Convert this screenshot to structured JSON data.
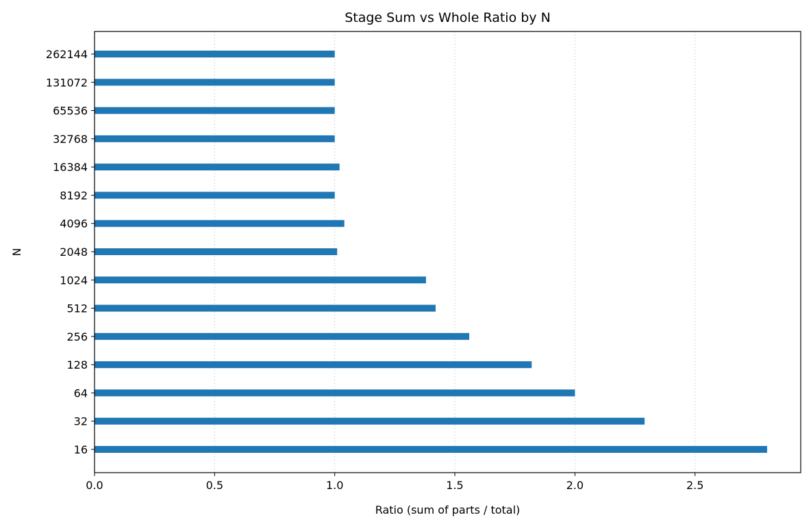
{
  "chart_data": {
    "type": "bar",
    "orientation": "horizontal",
    "title": "Stage Sum vs Whole Ratio by N",
    "xlabel": "Ratio (sum of parts / total)",
    "ylabel": "N",
    "categories": [
      "16",
      "32",
      "64",
      "128",
      "256",
      "512",
      "1024",
      "2048",
      "4096",
      "8192",
      "16384",
      "32768",
      "65536",
      "131072",
      "262144"
    ],
    "values": [
      2.8,
      2.29,
      2.0,
      1.82,
      1.56,
      1.42,
      1.38,
      1.01,
      1.04,
      1.0,
      1.02,
      1.0,
      1.0,
      1.0,
      1.0
    ],
    "xlim": [
      0,
      2.94
    ],
    "xticks": [
      0.0,
      0.5,
      1.0,
      1.5,
      2.0,
      2.5
    ],
    "xtick_labels": [
      "0.0",
      "0.5",
      "1.0",
      "1.5",
      "2.0",
      "2.5"
    ],
    "grid": {
      "x": true,
      "y": false,
      "style": "dotted"
    },
    "legend": "none",
    "bar_color": "#1f77b4"
  }
}
